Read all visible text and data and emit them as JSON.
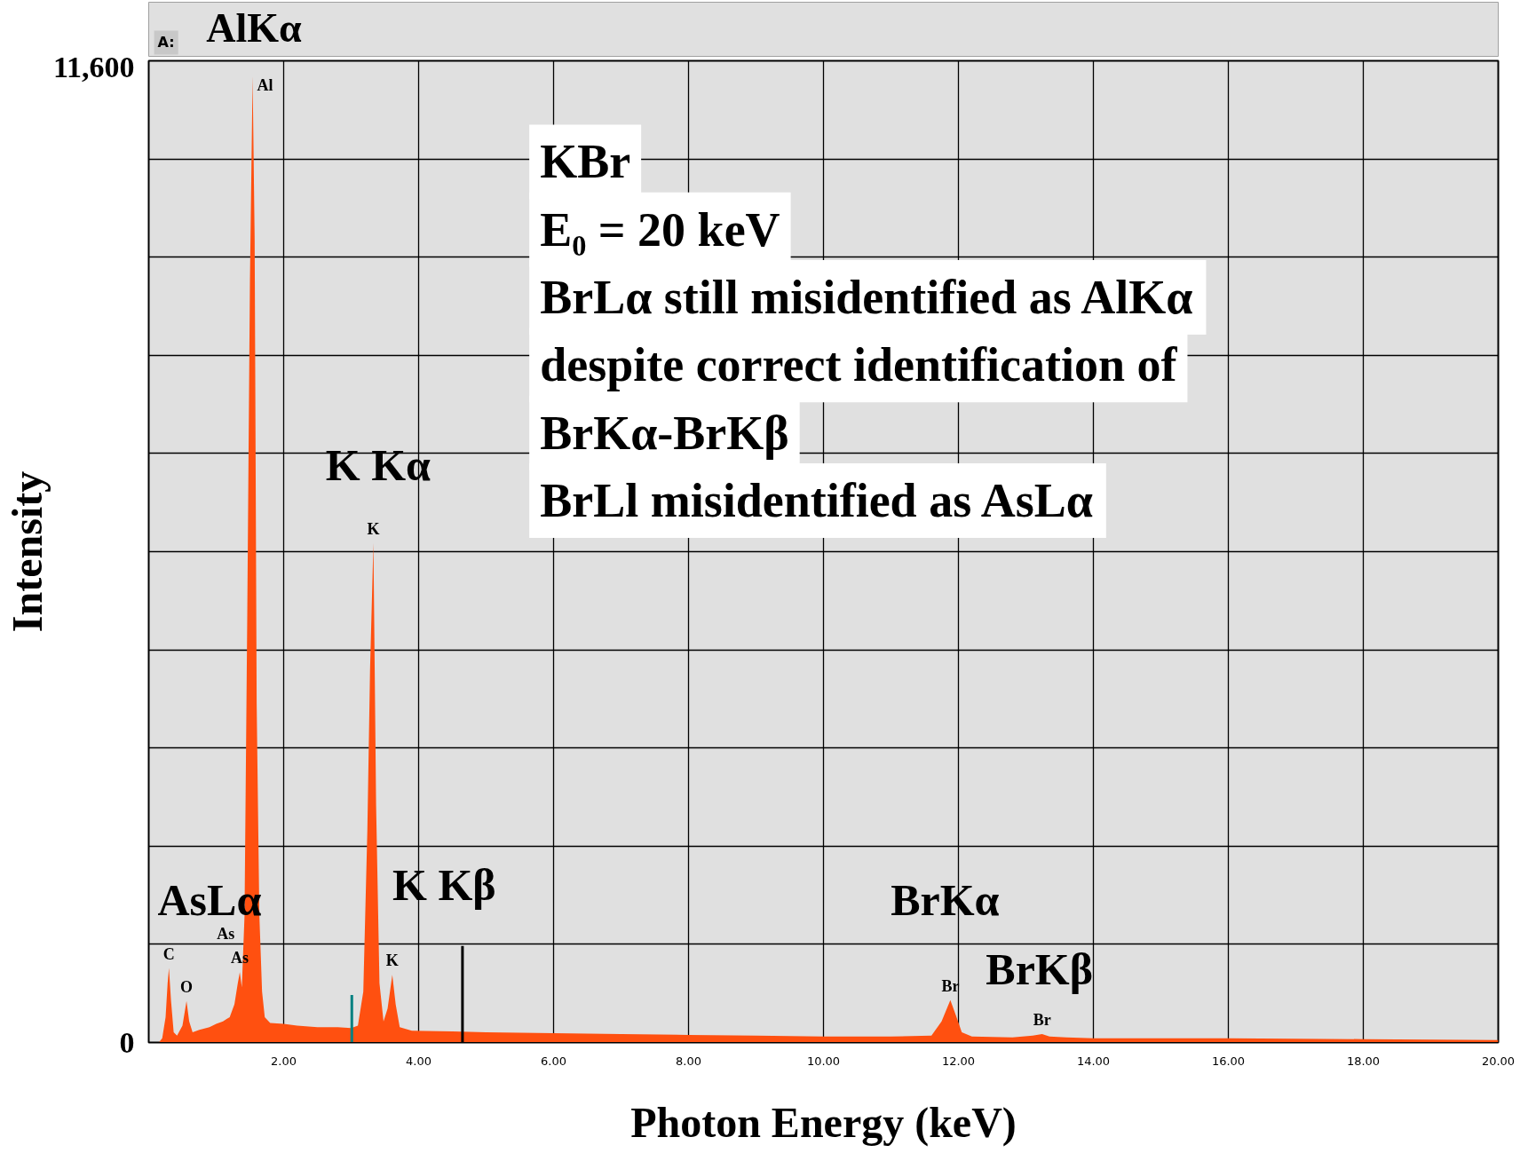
{
  "chart_data": {
    "type": "area",
    "xlabel": "Photon Energy (keV)",
    "ylabel": "Intensity",
    "xlim": [
      0,
      20
    ],
    "ylim": [
      0,
      11600
    ],
    "xticks": [
      {
        "value": 2,
        "label": "2.00"
      },
      {
        "value": 4,
        "label": "4.00"
      },
      {
        "value": 6,
        "label": "6.00"
      },
      {
        "value": 8,
        "label": "8.00"
      },
      {
        "value": 10,
        "label": "10.00"
      },
      {
        "value": 12,
        "label": "12.00"
      },
      {
        "value": 14,
        "label": "14.00"
      },
      {
        "value": 16,
        "label": "16.00"
      },
      {
        "value": 18,
        "label": "18.00"
      },
      {
        "value": 20,
        "label": "20.00"
      }
    ],
    "yticks": [
      {
        "value": 0,
        "label": "0"
      },
      {
        "value": 1160,
        "label": null
      },
      {
        "value": 2320,
        "label": null
      },
      {
        "value": 3480,
        "label": null
      },
      {
        "value": 4640,
        "label": null
      },
      {
        "value": 5800,
        "label": null
      },
      {
        "value": 6960,
        "label": null
      },
      {
        "value": 8120,
        "label": null
      },
      {
        "value": 9280,
        "label": null
      },
      {
        "value": 10440,
        "label": null
      },
      {
        "value": 11600,
        "label": "11,600"
      }
    ],
    "grid": true,
    "series": [
      {
        "color": "#ff5010",
        "x": [
          0.15,
          0.2,
          0.25,
          0.28,
          0.3,
          0.33,
          0.37,
          0.42,
          0.5,
          0.56,
          0.6,
          0.65,
          0.75,
          0.9,
          1.0,
          1.1,
          1.2,
          1.27,
          1.32,
          1.35,
          1.38,
          1.42,
          1.46,
          1.5,
          1.54,
          1.57,
          1.6,
          1.64,
          1.68,
          1.72,
          1.8,
          2.0,
          2.2,
          2.5,
          2.8,
          3.0,
          3.1,
          3.18,
          3.24,
          3.28,
          3.33,
          3.37,
          3.42,
          3.48,
          3.54,
          3.61,
          3.66,
          3.72,
          3.9,
          4.5,
          5,
          6,
          7,
          8,
          9,
          10,
          11,
          11.6,
          11.75,
          11.88,
          11.95,
          12.05,
          12.2,
          12.8,
          13.1,
          13.24,
          13.35,
          13.6,
          14,
          16,
          18,
          20
        ],
        "values": [
          0,
          50,
          300,
          700,
          880,
          500,
          120,
          80,
          200,
          490,
          250,
          120,
          150,
          180,
          220,
          250,
          300,
          450,
          700,
          830,
          650,
          1500,
          5000,
          9000,
          11420,
          9500,
          4000,
          1500,
          600,
          300,
          230,
          220,
          200,
          180,
          180,
          170,
          200,
          600,
          2500,
          4400,
          5900,
          2800,
          700,
          250,
          400,
          800,
          450,
          180,
          140,
          130,
          120,
          110,
          100,
          90,
          80,
          70,
          70,
          80,
          250,
          500,
          350,
          120,
          70,
          60,
          80,
          100,
          70,
          60,
          50,
          50,
          40,
          30
        ]
      },
      {
        "type": "line",
        "color": "#008080",
        "x": [
          3.01,
          3.01
        ],
        "values": [
          0,
          560
        ]
      },
      {
        "type": "line",
        "color": "#000000",
        "x": [
          4.65,
          4.65
        ],
        "values": [
          0,
          1140
        ]
      }
    ],
    "annotations": [
      "A:",
      "AlKα",
      "KBr",
      "E₀ = 20 keV",
      "BrLα still misidentified as AlKα",
      "despite correct identification of",
      "BrKα-BrKβ",
      "BrLl misidentified as AsLα",
      "K Kα",
      "K Kβ",
      "AsLα",
      "BrKα",
      "BrKβ",
      "As",
      {
        "text": "Al",
        "x": 1.54,
        "y": 11420
      },
      {
        "text": "K",
        "x": 3.33,
        "y": 5900
      },
      {
        "text": "K",
        "x": 3.61,
        "y": 800
      },
      {
        "text": "As",
        "x": 1.35,
        "y": 830
      },
      {
        "text": "C",
        "x": 0.3,
        "y": 880
      },
      {
        "text": "O",
        "x": 0.56,
        "y": 490
      },
      {
        "text": "Br",
        "x": 11.88,
        "y": 500
      },
      {
        "text": "Br",
        "x": 13.24,
        "y": 100
      }
    ]
  }
}
